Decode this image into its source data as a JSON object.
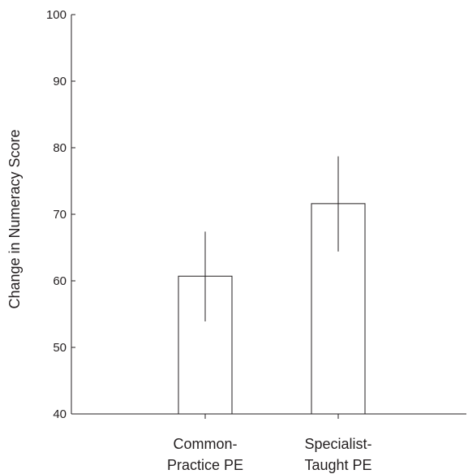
{
  "chart_data": {
    "type": "bar",
    "categories": [
      [
        "Common-",
        "Practice PE"
      ],
      [
        "Specialist-",
        "Taught PE"
      ]
    ],
    "values": [
      60.7,
      71.6
    ],
    "error_bars": [
      {
        "low": 53.9,
        "high": 67.4
      },
      {
        "low": 64.4,
        "high": 78.7
      }
    ],
    "title": "",
    "xlabel": "",
    "ylabel": "Change in Numeracy Score",
    "ylim": [
      40,
      100
    ],
    "yticks": [
      40,
      50,
      60,
      70,
      80,
      90,
      100
    ],
    "grid": false,
    "legend": "none",
    "bar_fill": "#ffffff",
    "stroke_color": "#231f20"
  }
}
